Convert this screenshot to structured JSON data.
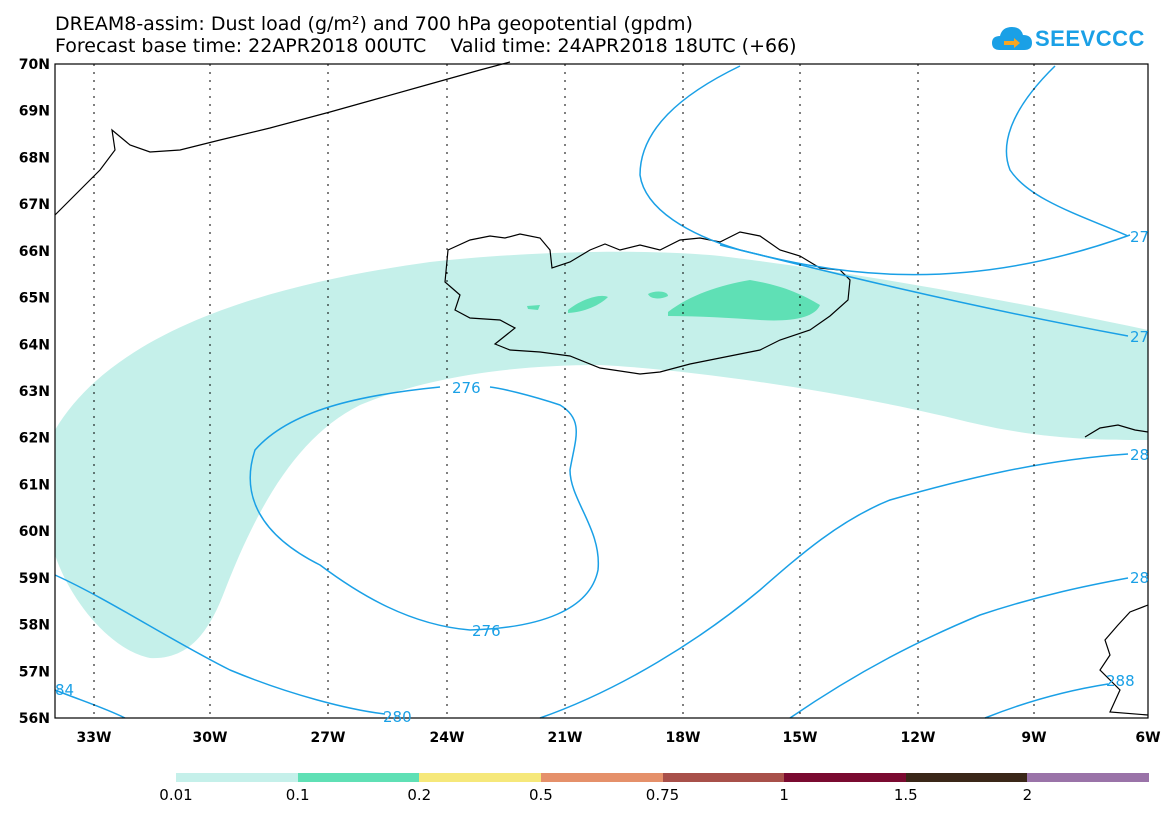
{
  "title": {
    "line1": "DREAM8-assim: Dust load (g/m²) and 700 hPa geopotential (gpdm)",
    "line2": "Forecast base time: 22APR2018 00UTC    Valid time: 24APR2018 18UTC (+66)"
  },
  "logo": {
    "text": "SEEVCCC",
    "icon": "cloud-icon"
  },
  "axes": {
    "lat_labels": [
      "70N",
      "69N",
      "68N",
      "67N",
      "66N",
      "65N",
      "64N",
      "63N",
      "62N",
      "61N",
      "60N",
      "59N",
      "58N",
      "57N",
      "56N"
    ],
    "lon_labels": [
      "33W",
      "30W",
      "27W",
      "24W",
      "21W",
      "18W",
      "15W",
      "12W",
      "9W",
      "6W"
    ]
  },
  "contour_labels": [
    {
      "text": "276"
    },
    {
      "text": "276"
    },
    {
      "text": "280"
    },
    {
      "text": "27"
    },
    {
      "text": "27"
    },
    {
      "text": "28"
    },
    {
      "text": "28"
    },
    {
      "text": "288"
    },
    {
      "text": "84"
    }
  ],
  "legend": {
    "labels": [
      "0.01",
      "0.1",
      "0.2",
      "0.5",
      "0.75",
      "1",
      "1.5",
      "2"
    ],
    "colors": [
      "#c5f0ea",
      "#5fe0b5",
      "#f6e87a",
      "#e5906a",
      "#a8504a",
      "#7a0a30",
      "#3a2718",
      "#9a73a8"
    ]
  },
  "colors": {
    "contour": "#1aa0e6",
    "dust_light": "#c5f0ea",
    "dust_mid": "#5fe0b5",
    "coast": "#000000"
  }
}
